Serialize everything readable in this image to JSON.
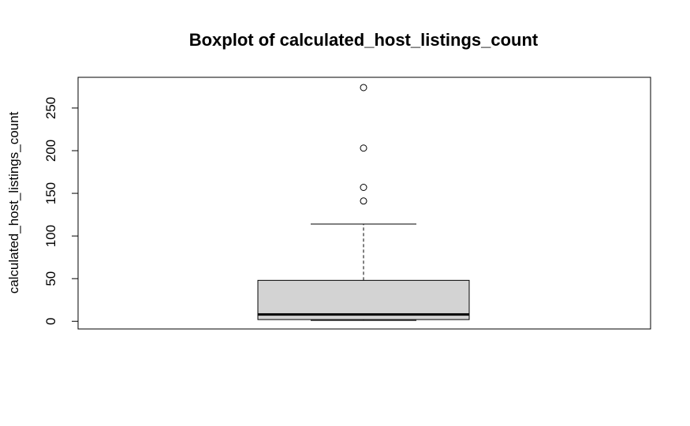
{
  "chart_data": {
    "type": "boxplot",
    "title": "Boxplot of calculated_host_listings_count",
    "xlabel": "",
    "ylabel": "calculated_host_listings_count",
    "ylim": [
      -9,
      286
    ],
    "yticks": [
      0,
      50,
      100,
      150,
      200,
      250
    ],
    "ytick_labels": [
      "0",
      "50",
      "100",
      "150",
      "200",
      "250"
    ],
    "grid": false,
    "box": {
      "min": 1,
      "q1": 2,
      "median": 8,
      "q3": 48,
      "whisker_low": 1,
      "whisker_high": 114,
      "outliers": [
        141,
        157,
        203,
        274
      ]
    },
    "colors": {
      "box_fill": "#d3d3d3",
      "stroke": "#000000",
      "background": "#ffffff"
    }
  }
}
